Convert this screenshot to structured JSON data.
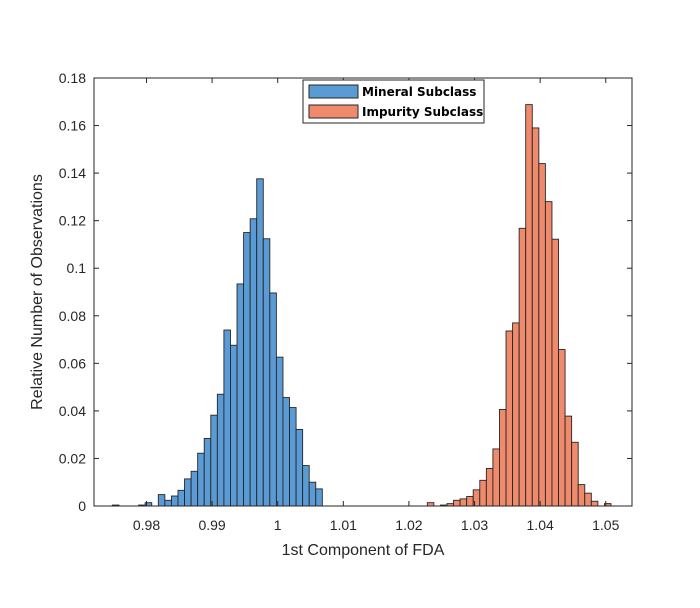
{
  "chart_data": {
    "type": "histogram",
    "xlabel": "1st Component of FDA",
    "ylabel": "Relative Number of Observations",
    "xlim": [
      0.972,
      1.054
    ],
    "ylim": [
      0,
      0.18
    ],
    "bin_width": 0.001,
    "grid": false,
    "legend_position": "top-center",
    "x_ticks": [
      {
        "value": 0.98,
        "label": "0.98"
      },
      {
        "value": 0.99,
        "label": "0.99"
      },
      {
        "value": 1.0,
        "label": "1"
      },
      {
        "value": 1.01,
        "label": "1.01"
      },
      {
        "value": 1.02,
        "label": "1.02"
      },
      {
        "value": 1.03,
        "label": "1.03"
      },
      {
        "value": 1.04,
        "label": "1.04"
      },
      {
        "value": 1.05,
        "label": "1.05"
      }
    ],
    "y_ticks": [
      {
        "value": 0,
        "label": "0"
      },
      {
        "value": 0.02,
        "label": "0.02"
      },
      {
        "value": 0.04,
        "label": "0.04"
      },
      {
        "value": 0.06,
        "label": "0.06"
      },
      {
        "value": 0.08,
        "label": "0.08"
      },
      {
        "value": 0.1,
        "label": "0.1"
      },
      {
        "value": 0.12,
        "label": "0.12"
      },
      {
        "value": 0.14,
        "label": "0.14"
      },
      {
        "value": 0.16,
        "label": "0.16"
      },
      {
        "value": 0.18,
        "label": "0.18"
      }
    ],
    "series": [
      {
        "name": "Mineral Subclass",
        "color": "#5b9bd5",
        "bin_starts": [
          0.9748,
          0.9788,
          0.9798,
          0.9818,
          0.9828,
          0.9838,
          0.9848,
          0.9858,
          0.9868,
          0.9878,
          0.9888,
          0.9898,
          0.9908,
          0.9918,
          0.9928,
          0.9938,
          0.9948,
          0.9958,
          0.9968,
          0.9978,
          0.9988,
          0.9998,
          1.0008,
          1.0018,
          1.0028,
          1.0038,
          1.0048,
          1.0058
        ],
        "values": [
          0.0004,
          0.0004,
          0.0014,
          0.0048,
          0.0024,
          0.0042,
          0.0066,
          0.0114,
          0.0146,
          0.0222,
          0.0284,
          0.0382,
          0.047,
          0.074,
          0.0676,
          0.0934,
          0.115,
          0.1208,
          0.1376,
          0.1124,
          0.0896,
          0.0626,
          0.0456,
          0.0414,
          0.0322,
          0.017,
          0.01,
          0.0072
        ]
      },
      {
        "name": "Impurity Subclass",
        "color": "#f08a6c",
        "bin_starts": [
          1.0228,
          1.0248,
          1.0258,
          1.0268,
          1.0278,
          1.0288,
          1.0298,
          1.0308,
          1.0318,
          1.0328,
          1.0338,
          1.0348,
          1.0358,
          1.0368,
          1.0378,
          1.0388,
          1.0398,
          1.0408,
          1.0418,
          1.0428,
          1.0438,
          1.0448,
          1.0458,
          1.0468,
          1.0478,
          1.0498
        ],
        "values": [
          0.0014,
          0.0004,
          0.001,
          0.0024,
          0.003,
          0.004,
          0.0068,
          0.0108,
          0.0158,
          0.024,
          0.0406,
          0.0736,
          0.077,
          0.1168,
          0.1688,
          0.159,
          0.144,
          0.128,
          0.1122,
          0.0658,
          0.0378,
          0.0268,
          0.009,
          0.0054,
          0.002,
          0.001
        ]
      }
    ]
  }
}
